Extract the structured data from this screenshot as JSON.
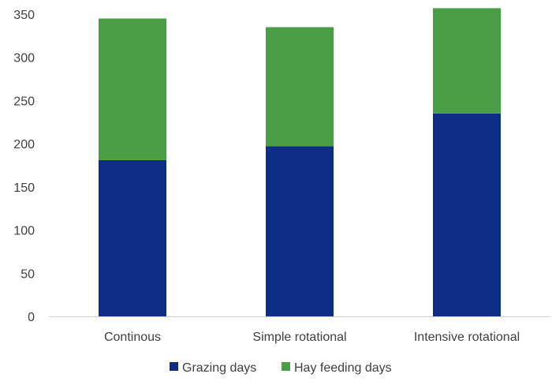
{
  "chart_data": {
    "type": "bar",
    "stacked": true,
    "categories": [
      "Continous",
      "Simple rotational",
      "Intensive rotational"
    ],
    "series": [
      {
        "name": "Grazing days",
        "color": "#0e2d85",
        "values": [
          181,
          197,
          235
        ]
      },
      {
        "name": "Hay feeding days",
        "color": "#4a9e45",
        "values": [
          164,
          138,
          122
        ]
      }
    ],
    "ylim": [
      0,
      350
    ],
    "yticks": [
      0,
      50,
      100,
      150,
      200,
      250,
      300,
      350
    ],
    "grid": false,
    "legend_position": "bottom"
  }
}
